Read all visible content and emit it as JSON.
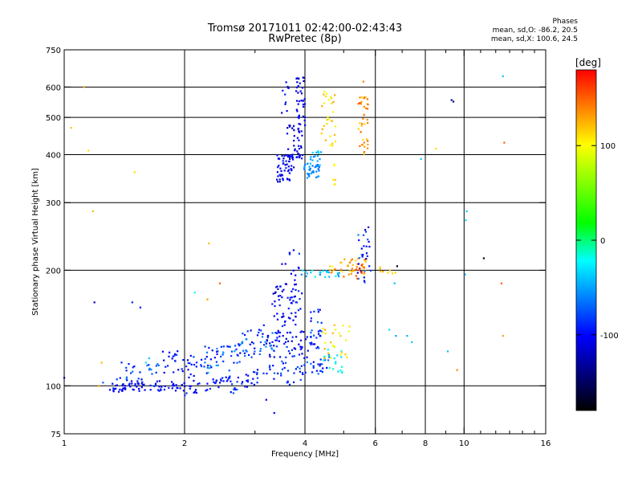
{
  "header": {
    "title_line1": "Tromsø 20171011 02:42:00-02:43:43",
    "title_line2": "RwPretec (8p)",
    "stats_title": "Phases",
    "stats_o": "mean, sd,O: -86.2, 20.5",
    "stats_x": "mean, sd,X: 100.6, 24.5"
  },
  "chart_data": {
    "type": "scatter",
    "xlabel": "Frequency [MHz]",
    "ylabel": "Stationary phase Virtual Height [km]",
    "xscale": "log",
    "yscale": "log",
    "xlim": [
      1,
      16
    ],
    "ylim": [
      75,
      750
    ],
    "x_ticks": [
      1,
      2,
      4,
      6,
      8,
      10,
      16
    ],
    "x_tick_labels": [
      "1",
      "2",
      "4",
      "6",
      "8",
      "10",
      "16"
    ],
    "x_minor_ticks": [
      3,
      5,
      7,
      9,
      11,
      12,
      13,
      14,
      15
    ],
    "y_ticks": [
      75,
      100,
      200,
      300,
      400,
      500,
      600,
      750
    ],
    "y_tick_labels": [
      "75",
      "100",
      "200",
      "300",
      "400",
      "500",
      "600",
      "750"
    ],
    "x_gridlines": [
      2,
      4,
      6,
      8,
      10
    ],
    "y_gridlines": [
      100,
      200,
      300,
      400,
      500,
      600
    ],
    "grid": true,
    "colorbar": {
      "label": "[deg]",
      "range": [
        -180,
        180
      ],
      "tick_values": [
        100,
        0,
        -100
      ],
      "tick_labels": [
        "100",
        "0",
        "-100"
      ],
      "colors": [
        "#ff0000",
        "#ffff00",
        "#00ff00",
        "#00ffff",
        "#0000ff",
        "#000000"
      ]
    },
    "series": [
      {
        "values": [
          [
            1.0,
            105,
            -100
          ],
          [
            1.12,
            600,
            130
          ],
          [
            1.15,
            410,
            110
          ],
          [
            1.18,
            285,
            120
          ],
          [
            1.22,
            100,
            130
          ],
          [
            1.24,
            115,
            120
          ],
          [
            1.04,
            470,
            120
          ],
          [
            1.5,
            360,
            110
          ],
          [
            1.48,
            165,
            -90
          ],
          [
            1.55,
            160,
            -100
          ],
          [
            1.6,
            115,
            -30
          ],
          [
            1.63,
            118,
            -40
          ],
          [
            1.19,
            165,
            -120
          ],
          [
            1.25,
            102,
            -70
          ],
          [
            2.12,
            175,
            -20
          ],
          [
            2.3,
            235,
            120
          ],
          [
            2.28,
            168,
            130
          ],
          [
            2.45,
            185,
            150
          ],
          [
            5.6,
            620,
            140
          ],
          [
            9.3,
            555,
            -130
          ],
          [
            9.4,
            550,
            -140
          ],
          [
            11.2,
            215,
            -170
          ],
          [
            12.5,
            640,
            -40
          ],
          [
            12.6,
            430,
            150
          ],
          [
            12.4,
            185,
            150
          ],
          [
            12.5,
            135,
            130
          ],
          [
            10.1,
            270,
            -30
          ],
          [
            10.15,
            285,
            -40
          ],
          [
            10.05,
            195,
            -50
          ],
          [
            9.6,
            110,
            140
          ],
          [
            9.1,
            123,
            -40
          ],
          [
            8.5,
            415,
            110
          ],
          [
            7.8,
            390,
            -40
          ],
          [
            7.4,
            130,
            -40
          ],
          [
            7.2,
            135,
            -45
          ],
          [
            6.75,
            135,
            -50
          ],
          [
            6.7,
            185,
            -40
          ],
          [
            6.5,
            140,
            -30
          ],
          [
            6.8,
            205,
            -180
          ],
          [
            3.2,
            92,
            -110
          ],
          [
            3.35,
            85,
            -100
          ]
        ]
      }
    ],
    "clusters": [
      {
        "x": [
          1.3,
          1.42
        ],
        "y": [
          96,
          102
        ],
        "n": 22,
        "c": [
          -115,
          -90
        ],
        "shape": "band"
      },
      {
        "x": [
          1.42,
          1.6
        ],
        "y": [
          96,
          104
        ],
        "n": 26,
        "c": [
          -120,
          -90
        ],
        "shape": "band"
      },
      {
        "x": [
          1.6,
          2.0
        ],
        "y": [
          97,
          103
        ],
        "n": 30,
        "c": [
          -110,
          -90
        ],
        "shape": "band"
      },
      {
        "x": [
          2.0,
          2.6
        ],
        "y": [
          97,
          104
        ],
        "n": 34,
        "c": [
          -110,
          -85
        ],
        "shape": "line",
        "y2": [
          100,
          102
        ]
      },
      {
        "x": [
          2.6,
          3.6
        ],
        "y": [
          100,
          112
        ],
        "n": 46,
        "c": [
          -110,
          -70
        ],
        "shape": "line",
        "y2": [
          103,
          110
        ]
      },
      {
        "x": [
          3.6,
          4.6
        ],
        "y": [
          104,
          116
        ],
        "n": 40,
        "c": [
          -110,
          -60
        ],
        "shape": "line",
        "y2": [
          106,
          114
        ]
      },
      {
        "x": [
          4.4,
          5.0
        ],
        "y": [
          108,
          125
        ],
        "n": 18,
        "c": [
          -40,
          -10
        ],
        "shape": "band"
      },
      {
        "x": [
          1.35,
          1.75
        ],
        "y": [
          104,
          116
        ],
        "n": 24,
        "c": [
          -100,
          -60
        ],
        "shape": "band"
      },
      {
        "x": [
          1.75,
          2.0
        ],
        "y": [
          108,
          125
        ],
        "n": 20,
        "c": [
          -110,
          -80
        ],
        "shape": "band"
      },
      {
        "x": [
          2.0,
          3.2
        ],
        "y": [
          110,
          135
        ],
        "n": 70,
        "c": [
          -115,
          -75
        ],
        "shape": "line",
        "y2": [
          120,
          140
        ]
      },
      {
        "x": [
          2.2,
          3.4
        ],
        "y": [
          112,
          130
        ],
        "n": 40,
        "c": [
          -80,
          -40
        ],
        "shape": "line",
        "y2": [
          125,
          145
        ]
      },
      {
        "x": [
          3.2,
          4.1
        ],
        "y": [
          118,
          140
        ],
        "n": 50,
        "c": [
          -120,
          -80
        ],
        "shape": "band"
      },
      {
        "x": [
          3.3,
          3.9
        ],
        "y": [
          130,
          185
        ],
        "n": 60,
        "c": [
          -125,
          -85
        ],
        "shape": "band"
      },
      {
        "x": [
          3.5,
          3.95
        ],
        "y": [
          150,
          230
        ],
        "n": 24,
        "c": [
          -120,
          -80
        ],
        "shape": "band"
      },
      {
        "x": [
          4.1,
          4.4
        ],
        "y": [
          125,
          160
        ],
        "n": 30,
        "c": [
          -110,
          -60
        ],
        "shape": "band"
      },
      {
        "x": [
          4.4,
          5.2
        ],
        "y": [
          118,
          145
        ],
        "n": 26,
        "c": [
          90,
          130
        ],
        "shape": "band"
      },
      {
        "x": [
          3.9,
          4.9
        ],
        "y": [
          192,
          200
        ],
        "n": 26,
        "c": [
          -60,
          -20
        ],
        "shape": "band"
      },
      {
        "x": [
          4.6,
          5.8
        ],
        "y": [
          195,
          215
        ],
        "n": 36,
        "c": [
          100,
          150
        ],
        "shape": "band"
      },
      {
        "x": [
          5.4,
          5.85
        ],
        "y": [
          185,
          260
        ],
        "n": 30,
        "c": [
          -120,
          -60
        ],
        "shape": "band"
      },
      {
        "x": [
          5.0,
          5.7
        ],
        "y": [
          190,
          210
        ],
        "n": 16,
        "c": [
          130,
          175
        ],
        "shape": "band"
      },
      {
        "x": [
          6.1,
          6.8
        ],
        "y": [
          196,
          206
        ],
        "n": 8,
        "c": [
          110,
          130
        ],
        "shape": "band"
      },
      {
        "x": [
          3.4,
          3.75
        ],
        "y": [
          340,
          400
        ],
        "n": 55,
        "c": [
          -125,
          -90
        ],
        "shape": "band"
      },
      {
        "x": [
          3.6,
          3.95
        ],
        "y": [
          390,
          480
        ],
        "n": 40,
        "c": [
          -130,
          -95
        ],
        "shape": "band"
      },
      {
        "x": [
          3.8,
          4.0
        ],
        "y": [
          460,
          640
        ],
        "n": 40,
        "c": [
          -125,
          -95
        ],
        "shape": "band"
      },
      {
        "x": [
          3.45,
          3.65
        ],
        "y": [
          480,
          620
        ],
        "n": 10,
        "c": [
          -120,
          -90
        ],
        "shape": "band"
      },
      {
        "x": [
          3.95,
          4.35
        ],
        "y": [
          345,
          380
        ],
        "n": 36,
        "c": [
          -70,
          -40
        ],
        "shape": "band"
      },
      {
        "x": [
          4.1,
          4.4
        ],
        "y": [
          370,
          410
        ],
        "n": 16,
        "c": [
          -60,
          -30
        ],
        "shape": "band"
      },
      {
        "x": [
          4.4,
          4.8
        ],
        "y": [
          420,
          590
        ],
        "n": 30,
        "c": [
          90,
          130
        ],
        "shape": "band"
      },
      {
        "x": [
          5.4,
          5.75
        ],
        "y": [
          400,
          570
        ],
        "n": 40,
        "c": [
          110,
          160
        ],
        "shape": "band"
      },
      {
        "x": [
          4.7,
          4.8
        ],
        "y": [
          320,
          380
        ],
        "n": 6,
        "c": [
          100,
          120
        ],
        "shape": "band"
      }
    ]
  }
}
